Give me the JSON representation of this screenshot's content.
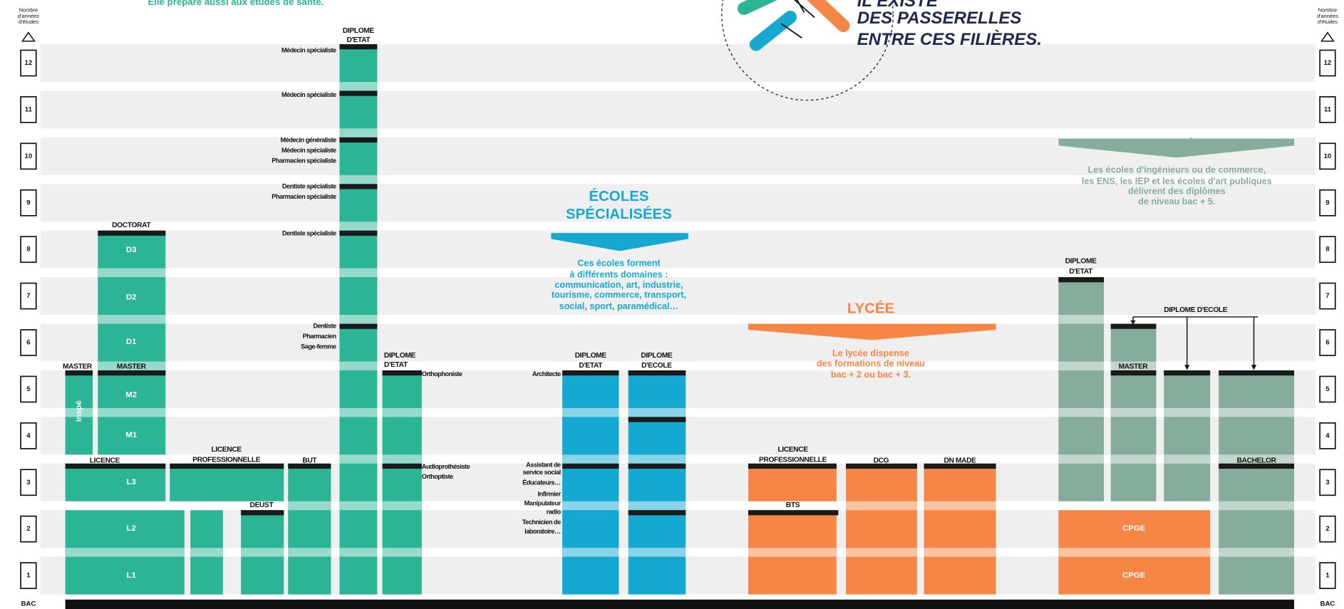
{
  "header": {
    "intro": "Elle prépare aussi aux études de santé.",
    "passerelles": [
      "IL EXISTE",
      "DES PASSERELLES",
      "ENTRE CES FILIÈRES."
    ]
  },
  "axis": {
    "title": [
      "Nombre",
      "d'années",
      "d'études"
    ],
    "levels": [
      "1",
      "2",
      "3",
      "4",
      "5",
      "6",
      "7",
      "8",
      "9",
      "10",
      "11",
      "12"
    ],
    "bac": "BAC"
  },
  "universite": {
    "cursus": [
      "LICENCE",
      "MASTER",
      "MASTER",
      "DOCTORAT",
      "LICENCE",
      "PROFESSIONNELLE",
      "DEUST",
      "BUT",
      "DIPLOME",
      "D'ETAT",
      "DIPLOME",
      "D'ETAT"
    ],
    "annees": [
      "L1",
      "L2",
      "L3",
      "M1",
      "M2",
      "D1",
      "D2",
      "D3",
      "Inspé"
    ],
    "sante": [
      "Médecin spécialiste",
      "Médecin spécialiste",
      "Médecin généraliste",
      "Médecin spécialiste",
      "Pharmacien spécialiste",
      "Dentiste spécialiste",
      "Pharmacien spécialiste",
      "Dentiste spécialiste",
      "Dentiste",
      "Pharmacien",
      "Sage-femme"
    ],
    "paramedical": [
      "Orthophoniste",
      "Audioprothésiste",
      "Orthoptiste"
    ]
  },
  "ecoles_specialisees": {
    "title": [
      "ÉCOLES",
      "SPÉCIALISÉES"
    ],
    "description": [
      "Ces écoles forment",
      "à différents domaines :",
      "communication, art, industrie,",
      "tourisme, commerce, transport,",
      "social, sport, paramédical…"
    ],
    "diplomes": [
      "DIPLOME",
      "D'ETAT",
      "DIPLOME",
      "D'ECOLE"
    ],
    "metiers": [
      "Architecte",
      "Assistant de",
      "service social",
      "Éducateurs…",
      "Infirmier",
      "Manipulateur",
      "radio",
      "Technicien de",
      "laboratoire…"
    ]
  },
  "lycee": {
    "title": "LYCÉE",
    "description": [
      "Le lycée dispense",
      "des formations de niveau",
      "bac + 2 ou bac + 3."
    ],
    "cursus": [
      "LICENCE",
      "PROFESSIONNELLE",
      "BTS",
      "DCG",
      "DN MADE",
      "CPGE",
      "CPGE"
    ]
  },
  "grandes_ecoles": {
    "title": "GRANDES ÉCOLES",
    "description": [
      "Les écoles d'ingénieurs ou de commerce,",
      "les ENS, les IEP et les écoles d'art publiques",
      "délivrent des diplômes",
      "de niveau bac + 5."
    ],
    "cursus": [
      "DIPLOME",
      "D'ETAT",
      "DIPLOME D'ECOLE",
      "MASTER",
      "BACHELOR"
    ]
  }
}
